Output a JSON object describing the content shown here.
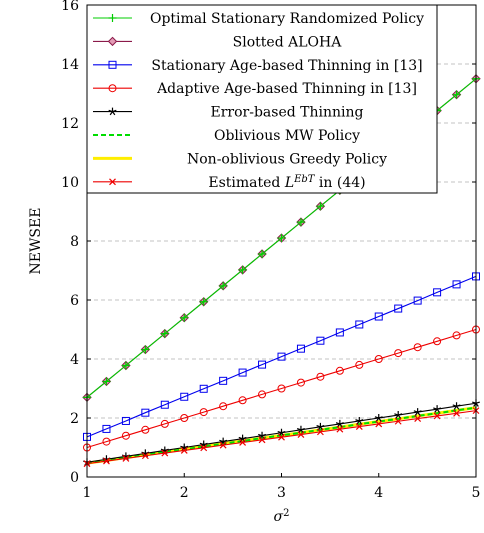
{
  "chart_data": {
    "type": "line",
    "title": "",
    "xlabel": "σ²",
    "ylabel": "NEWSEE",
    "xlim": [
      1,
      5
    ],
    "ylim": [
      0,
      16
    ],
    "x_ticks": [
      1,
      2,
      3,
      4,
      5
    ],
    "y_ticks": [
      0,
      2,
      4,
      6,
      8,
      10,
      12,
      14,
      16
    ],
    "grid": "horizontal dashed",
    "legend_position": "top-center",
    "x": [
      1.0,
      1.2,
      1.4,
      1.6,
      1.8,
      2.0,
      2.2,
      2.4,
      2.6,
      2.8,
      3.0,
      3.2,
      3.4,
      3.6,
      3.8,
      4.0,
      4.2,
      4.4,
      4.6,
      4.8,
      5.0
    ],
    "series": [
      {
        "name": "Optimal Stationary Randomized Policy",
        "color": "#00cc00",
        "marker": "plus",
        "line_style": "solid",
        "values": [
          2.7,
          3.24,
          3.78,
          4.32,
          4.86,
          5.4,
          5.94,
          6.48,
          7.02,
          7.56,
          8.1,
          8.64,
          9.18,
          9.72,
          10.26,
          10.8,
          11.34,
          11.88,
          12.42,
          12.96,
          13.5
        ]
      },
      {
        "name": "Slotted ALOHA",
        "color": "#8b1a4a",
        "marker": "diamond",
        "line_style": "solid",
        "values": [
          2.7,
          3.24,
          3.78,
          4.32,
          4.86,
          5.4,
          5.94,
          6.48,
          7.02,
          7.56,
          8.1,
          8.64,
          9.18,
          9.72,
          10.26,
          10.8,
          11.34,
          11.88,
          12.42,
          12.96,
          13.5
        ]
      },
      {
        "name": "Stationary Age-based Thinning in [13]",
        "color": "#0000ee",
        "marker": "square",
        "line_style": "solid",
        "values": [
          1.36,
          1.63,
          1.9,
          2.18,
          2.45,
          2.72,
          2.99,
          3.26,
          3.54,
          3.81,
          4.08,
          4.35,
          4.62,
          4.9,
          5.17,
          5.44,
          5.71,
          5.98,
          6.26,
          6.53,
          6.8
        ]
      },
      {
        "name": "Adaptive Age-based Thinning in [13]",
        "color": "#ee0000",
        "marker": "circle",
        "line_style": "solid",
        "values": [
          1.0,
          1.2,
          1.4,
          1.6,
          1.8,
          2.0,
          2.2,
          2.4,
          2.6,
          2.8,
          3.0,
          3.2,
          3.4,
          3.6,
          3.8,
          4.0,
          4.2,
          4.4,
          4.6,
          4.8,
          5.0
        ]
      },
      {
        "name": "Error-based Thinning",
        "color": "#000000",
        "marker": "star",
        "line_style": "solid",
        "values": [
          0.5,
          0.6,
          0.7,
          0.8,
          0.9,
          1.0,
          1.1,
          1.2,
          1.3,
          1.4,
          1.5,
          1.6,
          1.7,
          1.8,
          1.9,
          2.0,
          2.1,
          2.2,
          2.3,
          2.4,
          2.5
        ]
      },
      {
        "name": "Oblivious MW Policy",
        "color": "#00dd00",
        "marker": "none",
        "line_style": "dashed",
        "values": [
          0.47,
          0.56,
          0.66,
          0.75,
          0.85,
          0.94,
          1.03,
          1.13,
          1.22,
          1.32,
          1.41,
          1.5,
          1.6,
          1.69,
          1.79,
          1.88,
          1.97,
          2.07,
          2.16,
          2.26,
          2.35
        ]
      },
      {
        "name": "Non-oblivious Greedy Policy",
        "color": "#ffee00",
        "marker": "none",
        "line_style": "solid-thick",
        "values": [
          0.47,
          0.56,
          0.66,
          0.75,
          0.85,
          0.94,
          1.03,
          1.13,
          1.22,
          1.32,
          1.41,
          1.5,
          1.6,
          1.69,
          1.79,
          1.88,
          1.97,
          2.07,
          2.16,
          2.26,
          2.35
        ]
      },
      {
        "name": "Estimated L^{EbT} in (44)",
        "color": "#ee0000",
        "marker": "cross",
        "line_style": "solid",
        "values": [
          0.45,
          0.54,
          0.63,
          0.72,
          0.81,
          0.9,
          0.99,
          1.08,
          1.17,
          1.26,
          1.35,
          1.44,
          1.53,
          1.62,
          1.71,
          1.8,
          1.89,
          1.98,
          2.07,
          2.16,
          2.25
        ]
      }
    ]
  }
}
